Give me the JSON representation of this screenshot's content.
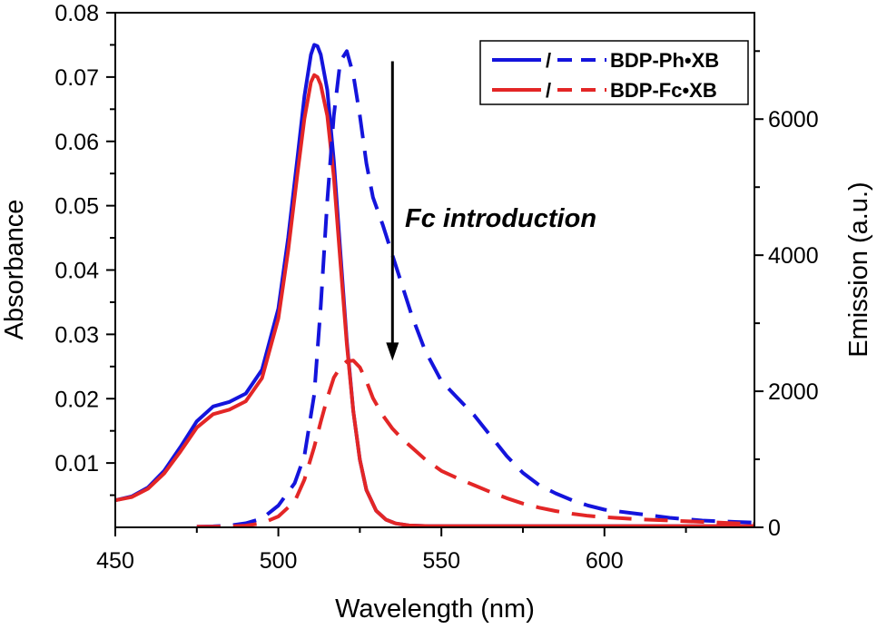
{
  "chart_data": {
    "type": "line",
    "xlabel": "Wavelength (nm)",
    "ylabel_left": "Absorbance",
    "ylabel_right": "Emission (a.u.)",
    "xlim": [
      450,
      646
    ],
    "ylim_left": [
      0,
      0.08
    ],
    "ylim_right": [
      0,
      7564
    ],
    "x_ticks": [
      450,
      500,
      550,
      600
    ],
    "y_ticks_left": [
      0.01,
      0.02,
      0.03,
      0.04,
      0.05,
      0.06,
      0.07,
      0.08
    ],
    "y_ticks_right": [
      0,
      2000,
      4000,
      6000
    ],
    "x_tick_labels": [
      "450",
      "500",
      "550",
      "600"
    ],
    "y_tick_labels_left": [
      "0.01",
      "0.02",
      "0.03",
      "0.04",
      "0.05",
      "0.06",
      "0.07",
      "0.08"
    ],
    "y_tick_labels_right": [
      "0",
      "2000",
      "4000",
      "6000"
    ],
    "legend": {
      "placement": "top-right",
      "entries": [
        {
          "separator": "/",
          "label": "BDP-Ph•XB",
          "color": "#1414dc"
        },
        {
          "separator": "/",
          "label": "BDP-Fc•XB",
          "color": "#e32626"
        }
      ]
    },
    "annotation": {
      "text": "Fc introduction",
      "arrow_x": 535,
      "arrow_from_emission": 6850,
      "arrow_to_emission": 2450
    },
    "series": [
      {
        "key": "ph_abs",
        "axis": "left",
        "style": "solid",
        "color": "#1414dc",
        "points": [
          [
            450,
            0.0042
          ],
          [
            455,
            0.0048
          ],
          [
            460,
            0.0062
          ],
          [
            465,
            0.0088
          ],
          [
            470,
            0.0125
          ],
          [
            475,
            0.0165
          ],
          [
            480,
            0.0188
          ],
          [
            485,
            0.0195
          ],
          [
            490,
            0.0208
          ],
          [
            495,
            0.0245
          ],
          [
            500,
            0.034
          ],
          [
            503,
            0.045
          ],
          [
            506,
            0.058
          ],
          [
            508,
            0.067
          ],
          [
            510,
            0.0735
          ],
          [
            511,
            0.075
          ],
          [
            512,
            0.0748
          ],
          [
            513,
            0.0735
          ],
          [
            515,
            0.068
          ],
          [
            517,
            0.057
          ],
          [
            519,
            0.043
          ],
          [
            521,
            0.029
          ],
          [
            523,
            0.018
          ],
          [
            525,
            0.0105
          ],
          [
            527,
            0.0058
          ],
          [
            530,
            0.0026
          ],
          [
            533,
            0.0012
          ],
          [
            536,
            0.0006
          ],
          [
            540,
            0.0003
          ],
          [
            546,
            0.0002
          ],
          [
            550,
            0.0002
          ],
          [
            600,
            0.0002
          ],
          [
            646,
            0.0002
          ]
        ]
      },
      {
        "key": "fc_abs",
        "axis": "left",
        "style": "solid",
        "color": "#e32626",
        "points": [
          [
            450,
            0.0042
          ],
          [
            455,
            0.0047
          ],
          [
            460,
            0.006
          ],
          [
            465,
            0.0084
          ],
          [
            470,
            0.0118
          ],
          [
            475,
            0.0155
          ],
          [
            480,
            0.0176
          ],
          [
            485,
            0.0183
          ],
          [
            490,
            0.0196
          ],
          [
            495,
            0.0232
          ],
          [
            500,
            0.0325
          ],
          [
            503,
            0.043
          ],
          [
            506,
            0.0555
          ],
          [
            508,
            0.0635
          ],
          [
            510,
            0.0692
          ],
          [
            511,
            0.0703
          ],
          [
            512,
            0.07
          ],
          [
            513,
            0.0688
          ],
          [
            515,
            0.064
          ],
          [
            517,
            0.0545
          ],
          [
            519,
            0.0415
          ],
          [
            521,
            0.0285
          ],
          [
            523,
            0.018
          ],
          [
            525,
            0.0105
          ],
          [
            527,
            0.0058
          ],
          [
            530,
            0.0026
          ],
          [
            533,
            0.0012
          ],
          [
            536,
            0.0006
          ],
          [
            540,
            0.0003
          ],
          [
            546,
            0.0002
          ],
          [
            550,
            0.0002
          ],
          [
            600,
            0.0002
          ],
          [
            646,
            0.0002
          ]
        ]
      },
      {
        "key": "ph_em",
        "axis": "right",
        "style": "dashed",
        "color": "#1414dc",
        "points": [
          [
            475,
            10
          ],
          [
            480,
            15
          ],
          [
            485,
            25
          ],
          [
            490,
            60
          ],
          [
            495,
            130
          ],
          [
            500,
            320
          ],
          [
            505,
            650
          ],
          [
            508,
            1050
          ],
          [
            511,
            1950
          ],
          [
            513,
            3250
          ],
          [
            515,
            4800
          ],
          [
            517,
            6050
          ],
          [
            519,
            6850
          ],
          [
            521,
            7000
          ],
          [
            523,
            6650
          ],
          [
            525,
            6050
          ],
          [
            527,
            5350
          ],
          [
            529,
            4850
          ],
          [
            532,
            4450
          ],
          [
            535,
            4000
          ],
          [
            538,
            3550
          ],
          [
            541,
            3100
          ],
          [
            545,
            2600
          ],
          [
            550,
            2150
          ],
          [
            555,
            1900
          ],
          [
            560,
            1650
          ],
          [
            565,
            1350
          ],
          [
            570,
            1050
          ],
          [
            575,
            800
          ],
          [
            580,
            620
          ],
          [
            585,
            500
          ],
          [
            590,
            400
          ],
          [
            595,
            320
          ],
          [
            600,
            260
          ],
          [
            610,
            200
          ],
          [
            620,
            140
          ],
          [
            630,
            100
          ],
          [
            640,
            80
          ],
          [
            646,
            70
          ]
        ]
      },
      {
        "key": "fc_em",
        "axis": "right",
        "style": "dashed",
        "color": "#e32626",
        "points": [
          [
            475,
            10
          ],
          [
            480,
            10
          ],
          [
            485,
            15
          ],
          [
            490,
            25
          ],
          [
            495,
            60
          ],
          [
            500,
            160
          ],
          [
            505,
            380
          ],
          [
            508,
            700
          ],
          [
            511,
            1180
          ],
          [
            513,
            1550
          ],
          [
            515,
            1900
          ],
          [
            517,
            2200
          ],
          [
            519,
            2350
          ],
          [
            521,
            2440
          ],
          [
            523,
            2450
          ],
          [
            525,
            2350
          ],
          [
            527,
            2150
          ],
          [
            529,
            1900
          ],
          [
            532,
            1650
          ],
          [
            535,
            1450
          ],
          [
            538,
            1300
          ],
          [
            541,
            1170
          ],
          [
            545,
            1000
          ],
          [
            550,
            830
          ],
          [
            555,
            720
          ],
          [
            560,
            620
          ],
          [
            565,
            520
          ],
          [
            570,
            430
          ],
          [
            575,
            350
          ],
          [
            580,
            290
          ],
          [
            585,
            240
          ],
          [
            590,
            200
          ],
          [
            595,
            170
          ],
          [
            600,
            150
          ],
          [
            610,
            120
          ],
          [
            620,
            100
          ],
          [
            630,
            80
          ],
          [
            640,
            60
          ],
          [
            646,
            50
          ]
        ]
      }
    ]
  }
}
